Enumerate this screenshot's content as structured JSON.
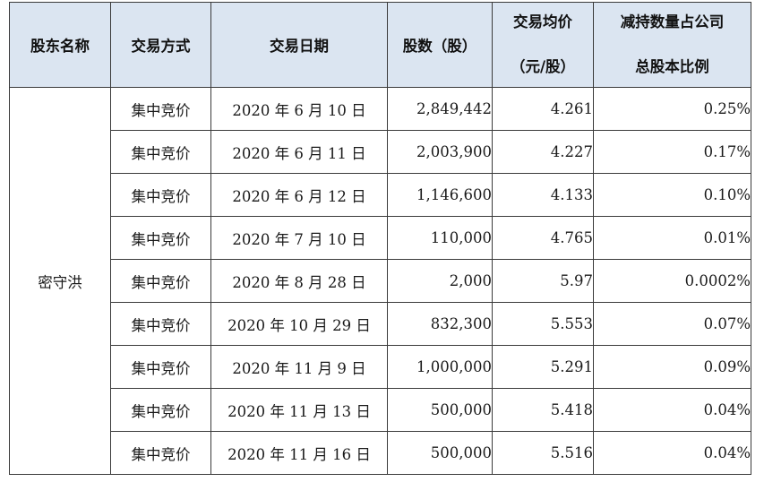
{
  "table": {
    "headers": {
      "holder_name": "股东名称",
      "trade_method": "交易方式",
      "trade_date": "交易日期",
      "shares": "股数（股）",
      "avg_price_line1": "交易均价",
      "avg_price_line2": "（元/股）",
      "ratio_line1": "减持数量占公司",
      "ratio_line2": "总股本比例"
    },
    "holder": "密守洪",
    "rows": [
      {
        "method": "集中竞价",
        "date": "2020 年 6 月 10 日",
        "shares": "2,849,442",
        "price": "4.261",
        "ratio": "0.25%"
      },
      {
        "method": "集中竞价",
        "date": "2020 年 6 月 11 日",
        "shares": "2,003,900",
        "price": "4.227",
        "ratio": "0.17%"
      },
      {
        "method": "集中竞价",
        "date": "2020 年 6 月 12 日",
        "shares": "1,146,600",
        "price": "4.133",
        "ratio": "0.10%"
      },
      {
        "method": "集中竞价",
        "date": "2020 年 7 月 10 日",
        "shares": "110,000",
        "price": "4.765",
        "ratio": "0.01%"
      },
      {
        "method": "集中竞价",
        "date": "2020 年 8 月 28 日",
        "shares": "2,000",
        "price": "5.97",
        "ratio": "0.0002%"
      },
      {
        "method": "集中竞价",
        "date": "2020 年 10 月 29 日",
        "shares": "832,300",
        "price": "5.553",
        "ratio": "0.07%"
      },
      {
        "method": "集中竞价",
        "date": "2020 年 11 月 9 日",
        "shares": "1,000,000",
        "price": "5.291",
        "ratio": "0.09%"
      },
      {
        "method": "集中竞价",
        "date": "2020 年 11 月 13 日",
        "shares": "500,000",
        "price": "5.418",
        "ratio": "0.04%"
      },
      {
        "method": "集中竞价",
        "date": "2020 年 11 月 16 日",
        "shares": "500,000",
        "price": "5.516",
        "ratio": "0.04%"
      }
    ]
  }
}
